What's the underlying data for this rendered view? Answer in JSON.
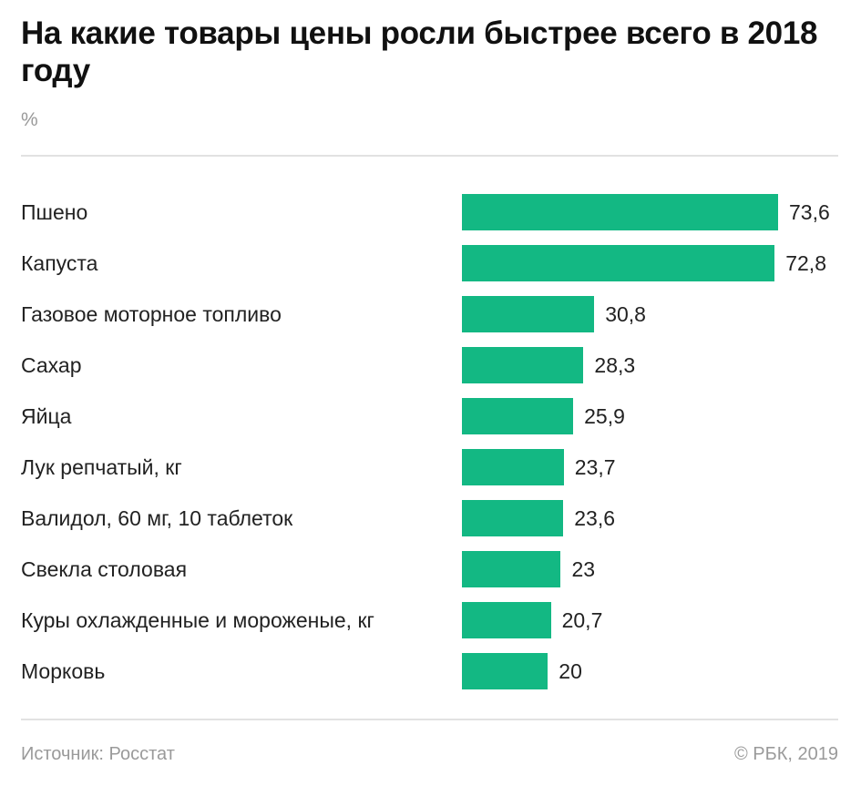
{
  "chart_data": {
    "type": "bar",
    "orientation": "horizontal",
    "title": "На какие товары цены росли быстрее всего в 2018 году",
    "unit": "%",
    "categories": [
      "Пшено",
      "Капуста",
      "Газовое моторное топливо",
      "Сахар",
      "Яйца",
      "Лук репчатый, кг",
      "Валидол, 60 мг, 10 таблеток",
      "Свекла столовая",
      "Куры охлажденные и мороженые, кг",
      "Морковь"
    ],
    "values": [
      73.6,
      72.8,
      30.8,
      28.3,
      25.9,
      23.7,
      23.6,
      23,
      20.7,
      20
    ],
    "value_labels": [
      "73,6",
      "72,8",
      "30,8",
      "28,3",
      "25,9",
      "23,7",
      "23,6",
      "23",
      "20,7",
      "20"
    ],
    "bar_color": "#13b883",
    "grid": false,
    "source": "Источник: Росстат",
    "copyright": "© РБК, 2019"
  }
}
